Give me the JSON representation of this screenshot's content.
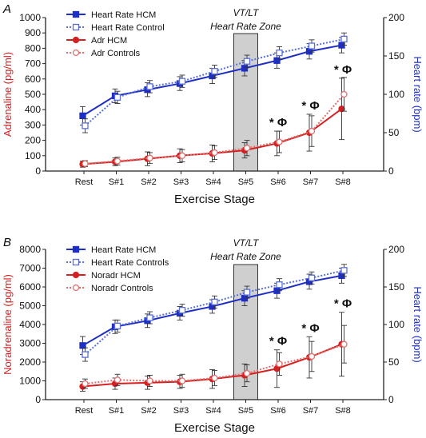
{
  "colors": {
    "hr_hcm": "#1f2fc4",
    "hr_control": "#5a6fd8",
    "catechol_hcm": "#d42020",
    "catechol_control": "#e07070",
    "axis": "#222222",
    "error_bar": "#333333",
    "zone_fill": "#cfcfcf"
  },
  "chart_data": [
    {
      "type": "line",
      "panel_label": "A",
      "xlabel": "Exercise Stage",
      "ylabel_left": "Adrenaline (pg/ml)",
      "ylabel_right": "Heart rate (bpm)",
      "categories": [
        "Rest",
        "S#1",
        "S#2",
        "S#3",
        "S#4",
        "S#5",
        "S#6",
        "S#7",
        "S#8"
      ],
      "ylim_left": [
        0,
        1000
      ],
      "yticks_left": [
        0,
        100,
        200,
        300,
        400,
        500,
        600,
        700,
        800,
        900,
        1000
      ],
      "ylim_right": [
        0,
        200
      ],
      "yticks_right": [
        0,
        50,
        100,
        150,
        200
      ],
      "zone_label_1": "VT/LT",
      "zone_label_2": "Heart Rate Zone",
      "zone_category": "S#5",
      "significance_marker": "* Φ",
      "significant_categories": [
        "S#6",
        "S#7",
        "S#8"
      ],
      "legend_position": "top-left",
      "series": [
        {
          "name": "Heart Rate HCM",
          "axis": "right",
          "values": [
            72,
            98,
            106,
            114,
            124,
            134,
            144,
            156,
            164
          ],
          "errors": [
            12,
            9,
            9,
            9,
            10,
            10,
            10,
            10,
            10
          ]
        },
        {
          "name": "Heart Rate Control",
          "axis": "right",
          "values": [
            59,
            96,
            110,
            117,
            130,
            143,
            154,
            163,
            172
          ],
          "errors": [
            9,
            8,
            8,
            8,
            8,
            8,
            8,
            8,
            8
          ]
        },
        {
          "name": "Adr HCM",
          "axis": "left",
          "values": [
            45,
            60,
            80,
            100,
            115,
            135,
            180,
            250,
            405
          ],
          "errors": [
            20,
            25,
            45,
            45,
            55,
            50,
            80,
            120,
            200
          ]
        },
        {
          "name": "Adr Controls",
          "axis": "left",
          "values": [
            48,
            65,
            85,
            100,
            120,
            150,
            190,
            260,
            500
          ],
          "errors": [
            20,
            25,
            35,
            40,
            45,
            50,
            70,
            100,
            110
          ]
        }
      ]
    },
    {
      "type": "line",
      "panel_label": "B",
      "xlabel": "Exercise Stage",
      "ylabel_left": "Noradrenaline (pg/ml)",
      "ylabel_right": "Heart rate (bpm)",
      "categories": [
        "Rest",
        "S#1",
        "S#2",
        "S#3",
        "S#4",
        "S#5",
        "S#6",
        "S#7",
        "S#8"
      ],
      "ylim_left": [
        0,
        8000
      ],
      "yticks_left": [
        0,
        1000,
        2000,
        3000,
        4000,
        5000,
        6000,
        7000,
        8000
      ],
      "ylim_right": [
        0,
        200
      ],
      "yticks_right": [
        0,
        50,
        100,
        150,
        200
      ],
      "zone_label_1": "VT/LT",
      "zone_label_2": "Heart Rate Zone",
      "zone_category": "S#5",
      "significance_marker": "* Φ",
      "significant_categories": [
        "S#6",
        "S#7",
        "S#8"
      ],
      "legend_position": "top-left",
      "series": [
        {
          "name": "Heart Rate HCM",
          "axis": "right",
          "values": [
            72,
            97,
            105,
            115,
            124,
            135,
            145,
            157,
            165
          ],
          "errors": [
            12,
            9,
            9,
            9,
            9,
            10,
            10,
            10,
            10
          ]
        },
        {
          "name": "Heart Rate Controls",
          "axis": "right",
          "values": [
            60,
            98,
            109,
            119,
            130,
            143,
            153,
            162,
            172
          ],
          "errors": [
            9,
            8,
            8,
            8,
            8,
            8,
            8,
            8,
            8
          ]
        },
        {
          "name": "Noradr HCM",
          "axis": "left",
          "values": [
            700,
            850,
            900,
            950,
            1100,
            1300,
            1650,
            2250,
            2950
          ],
          "errors": [
            250,
            300,
            350,
            350,
            500,
            600,
            1000,
            1100,
            1700
          ]
        },
        {
          "name": "Noradr Controls",
          "axis": "left",
          "values": [
            850,
            1050,
            1000,
            1000,
            1150,
            1400,
            1900,
            2300,
            2950
          ],
          "errors": [
            250,
            300,
            300,
            350,
            400,
            450,
            600,
            800,
            1000
          ]
        }
      ]
    }
  ]
}
